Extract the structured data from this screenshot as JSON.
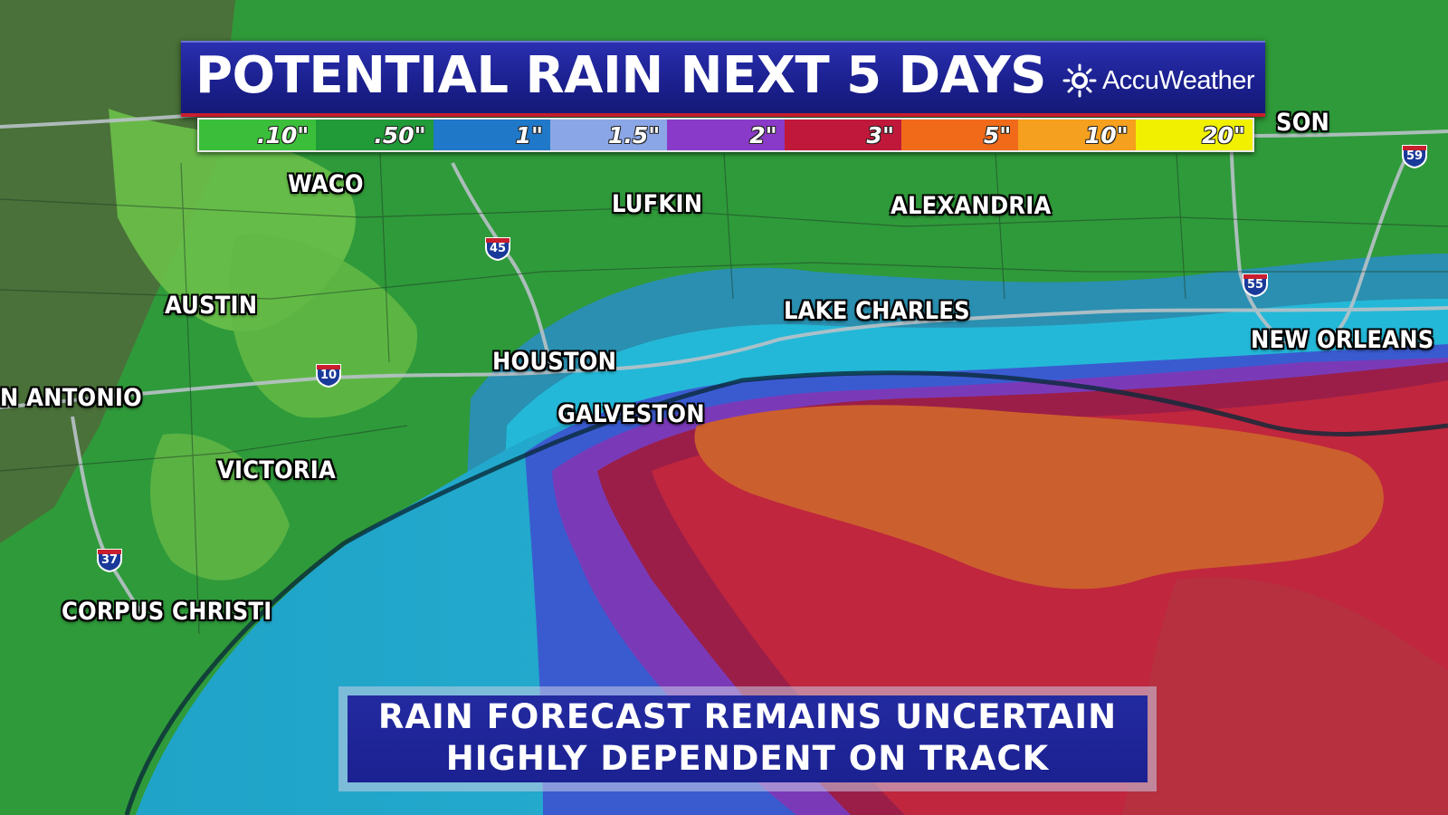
{
  "title": "POTENTIAL RAIN NEXT 5 DAYS",
  "brand": {
    "name": "AccuWeather",
    "icon": "sun-icon"
  },
  "legend": [
    {
      "label": ".10\"",
      "color": "#3bbf3a"
    },
    {
      "label": ".50\"",
      "color": "#219a38"
    },
    {
      "label": "1\"",
      "color": "#1f78c8"
    },
    {
      "label": "1.5\"",
      "color": "#8aa6e6"
    },
    {
      "label": "2\"",
      "color": "#8a3ac8"
    },
    {
      "label": "3\"",
      "color": "#c0183a"
    },
    {
      "label": "5\"",
      "color": "#f06a1a"
    },
    {
      "label": "10\"",
      "color": "#f5a01e"
    },
    {
      "label": "20\"",
      "color": "#f0f000"
    }
  ],
  "cities": {
    "waco": "WACO",
    "lufkin": "LUFKIN",
    "alexandria": "ALEXANDRIA",
    "jackson_partial": "SON",
    "austin": "AUSTIN",
    "lake_charles": "LAKE CHARLES",
    "houston": "HOUSTON",
    "new_orleans": "NEW ORLEANS",
    "san_antonio_partial": "N ANTONIO",
    "galveston": "GALVESTON",
    "victoria": "VICTORIA",
    "corpus_christi": "CORPUS CHRISTI"
  },
  "interstates": {
    "i45": "45",
    "i10": "10",
    "i37": "37",
    "i55": "55",
    "i59": "59"
  },
  "lower_third": {
    "line1": "RAIN FORECAST REMAINS UNCERTAIN",
    "line2": "HIGHLY DEPENDENT ON TRACK"
  }
}
